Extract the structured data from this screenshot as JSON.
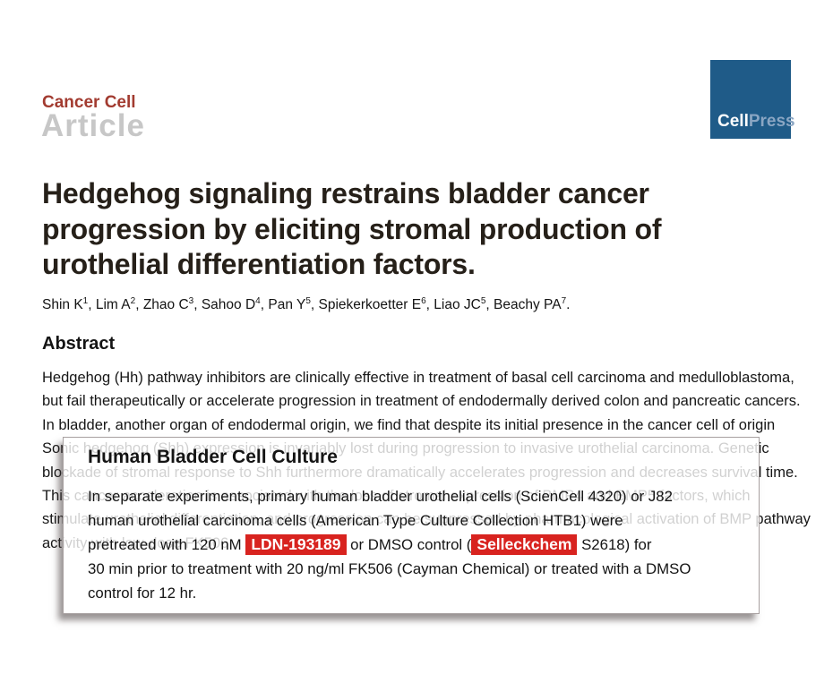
{
  "header": {
    "journal_label": "Cancer Cell",
    "article_type": "Article",
    "logo_cell": "Cell",
    "logo_press": "Press"
  },
  "title": {
    "line1": "Hedgehog signaling restrains bladder cancer",
    "line2": "progression by eliciting stromal production of",
    "line3": "urothelial differentiation factors."
  },
  "authors": [
    {
      "name": "Shin K",
      "sup": "1",
      "sep": ", "
    },
    {
      "name": "Lim A",
      "sup": "2",
      "sep": ", "
    },
    {
      "name": "Zhao C",
      "sup": "3",
      "sep": ", "
    },
    {
      "name": "Sahoo D",
      "sup": "4",
      "sep": ", "
    },
    {
      "name": "Pan Y",
      "sup": "5",
      "sep": ", "
    },
    {
      "name": "Spiekerkoetter E",
      "sup": "6",
      "sep": ", "
    },
    {
      "name": "Liao JC",
      "sup": "5",
      "sep": ", "
    },
    {
      "name": "Beachy PA",
      "sup": "7",
      "sep": "."
    }
  ],
  "abstract": {
    "heading": "Abstract",
    "lines": [
      "Hedgehog (Hh) pathway inhibitors are clinically effective in treatment of basal cell carcinoma and medulloblastoma,",
      "but fail therapeutically or accelerate progression in treatment of endodermally derived colon and pancreatic cancers.",
      "In bladder, another organ of endodermal origin, we find that despite its initial presence in the cancer cell of origin",
      "Sonic hedgehog (Shh) expression is invariably lost during progression to invasive urothelial carcinoma. Genetic",
      "blockade of stromal response to Shh furthermore dramatically accelerates progression and decreases survival time.",
      "This cancer acceleration is associated with the loss of stromal expression of BMP4 and BMP5 factors, which",
      "stimulate urothelial differentiation, and progression can be suppressed by pharmacological activation of BMP pathway",
      "activity with low-dose FK506."
    ]
  },
  "excerpt_card": {
    "heading": "Human Bladder Cell Culture",
    "line1": "In separate experiments, primary human bladder urothelial cells (ScienCell 4320) or J82",
    "line2": "human urothelial carcinoma cells (American Type Culture Collection HTB1) were",
    "line3_pre": "pretreated with 120 nM ",
    "highlight_1": "LDN-193189",
    "line3_mid": " or DMSO control (",
    "highlight_2": "Selleckchem",
    "line3_post": " S2618) for",
    "line4": "30 min prior to treatment with 20 ng/ml FK506 (Cayman Chemical) or treated with a DMSO",
    "line5": "control for 12 hr."
  },
  "colors": {
    "journal_red": "#a23b30",
    "article_gray": "#c7c7c7",
    "logo_blue": "#1f5b88",
    "logo_press_blue": "#8ba6c3",
    "highlight_red": "#d8231f"
  }
}
